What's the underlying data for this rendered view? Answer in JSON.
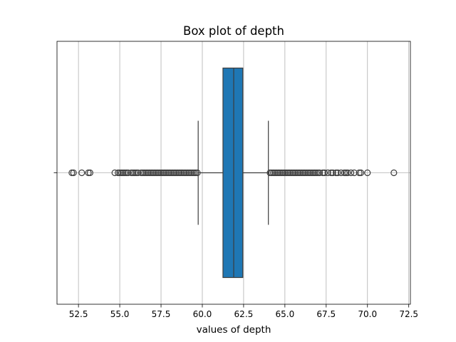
{
  "chart_data": {
    "type": "box",
    "title": "Box plot of depth",
    "xlabel": "values of depth",
    "ylabel": "",
    "xlim": [
      51.2,
      72.6
    ],
    "xticks": [
      52.5,
      55.0,
      57.5,
      60.0,
      62.5,
      65.0,
      67.5,
      70.0,
      72.5
    ],
    "xtick_labels": [
      "52.5",
      "55.0",
      "57.5",
      "60.0",
      "62.5",
      "65.0",
      "67.5",
      "70.0",
      "72.5"
    ],
    "grid": "x",
    "box_color": "#1f77b4",
    "series": [
      {
        "whisker_low": 59.75,
        "q1": 61.25,
        "median": 61.9,
        "q3": 62.45,
        "whisker_high": 64.0,
        "outliers": [
          52.1,
          52.2,
          52.7,
          53.1,
          53.2,
          54.7,
          54.9,
          55.0,
          55.1,
          55.2,
          55.3,
          55.4,
          55.5,
          55.7,
          55.8,
          55.9,
          56.0,
          56.1,
          56.3,
          56.4,
          56.5,
          56.6,
          56.7,
          56.8,
          56.9,
          57.0,
          57.1,
          57.2,
          57.3,
          57.4,
          57.5,
          57.6,
          57.7,
          57.8,
          57.9,
          58.0,
          58.1,
          58.2,
          58.3,
          58.4,
          58.5,
          58.6,
          58.7,
          58.8,
          58.9,
          59.0,
          59.1,
          59.2,
          59.3,
          59.4,
          59.5,
          59.6,
          59.7,
          64.1,
          64.2,
          64.3,
          64.4,
          64.5,
          64.6,
          64.7,
          64.8,
          64.9,
          65.0,
          65.1,
          65.2,
          65.3,
          65.4,
          65.5,
          65.6,
          65.7,
          65.8,
          65.9,
          66.0,
          66.1,
          66.2,
          66.3,
          66.4,
          66.5,
          66.6,
          66.7,
          66.8,
          66.9,
          67.0,
          67.1,
          67.3,
          67.4,
          67.6,
          67.8,
          67.9,
          68.1,
          68.2,
          68.4,
          68.6,
          68.7,
          68.8,
          69.0,
          69.2,
          69.5,
          69.6,
          70.0,
          71.6
        ]
      }
    ]
  }
}
